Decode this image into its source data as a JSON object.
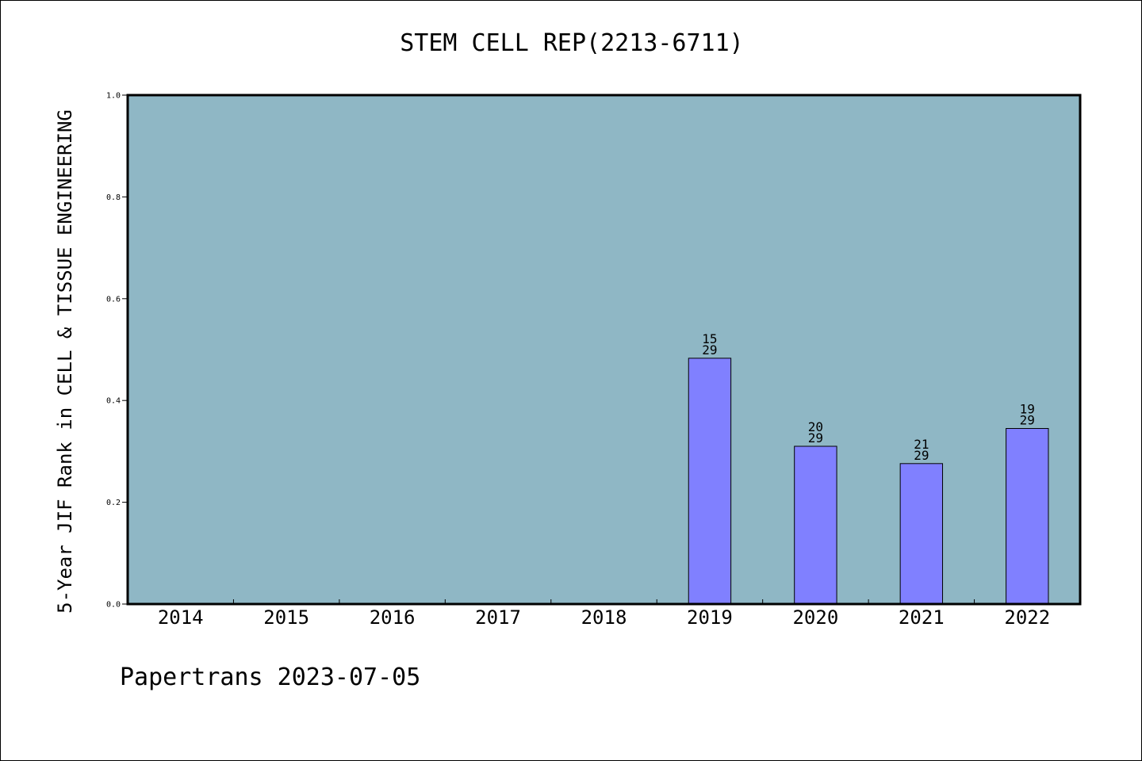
{
  "chart_data": {
    "type": "bar",
    "title": "STEM CELL REP(2213-6711)",
    "xlabel": "",
    "ylabel": "5-Year JIF Rank in CELL & TISSUE ENGINEERING",
    "categories": [
      "2014",
      "2015",
      "2016",
      "2017",
      "2018",
      "2019",
      "2020",
      "2021",
      "2022"
    ],
    "values": [
      null,
      null,
      null,
      null,
      null,
      0.483,
      0.31,
      0.276,
      0.345
    ],
    "bar_labels": [
      null,
      null,
      null,
      null,
      null,
      {
        "rank": "15",
        "total": "29"
      },
      {
        "rank": "20",
        "total": "29"
      },
      {
        "rank": "21",
        "total": "29"
      },
      {
        "rank": "19",
        "total": "29"
      }
    ],
    "ylim": [
      0.0,
      1.0
    ],
    "yticks": [
      "0.0",
      "0.2",
      "0.4",
      "0.6",
      "0.8",
      "1.0"
    ],
    "grid": false,
    "colors": {
      "plot_background": "#8fb7c5",
      "bar_fill": "#8080ff",
      "bar_edge": "#000000",
      "axes_edge": "#000000"
    }
  },
  "footer": "Papertrans 2023-07-05"
}
